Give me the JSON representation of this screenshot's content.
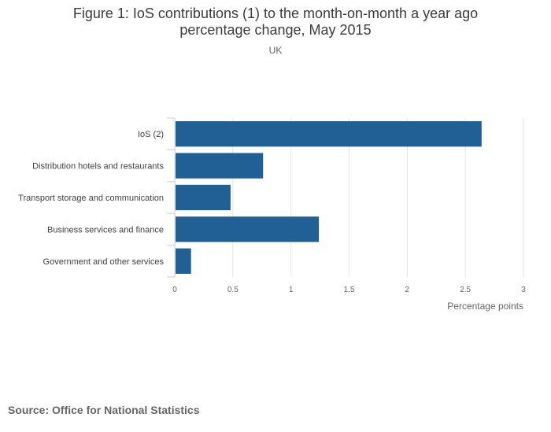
{
  "chart_data": {
    "type": "bar",
    "orientation": "horizontal",
    "title": "Figure 1: IoS contributions (1) to the month-on-month a year ago percentage change, May 2015",
    "subtitle": "UK",
    "categories": [
      "IoS (2)",
      "Distribution hotels and restaurants",
      "Transport storage and communication",
      "Business services and finance",
      "Government and other services"
    ],
    "values": [
      2.64,
      0.76,
      0.48,
      1.24,
      0.14
    ],
    "xlabel": "Percentage points",
    "ylabel": "",
    "xlim": [
      0,
      3
    ],
    "xticks": [
      0,
      0.5,
      1,
      1.5,
      2,
      2.5,
      3
    ],
    "xtick_labels": [
      "0",
      "0.5",
      "1",
      "1.5",
      "2",
      "2.5",
      "3"
    ],
    "grid": true,
    "bar_color": "#206095"
  },
  "footer": {
    "source": "Source: Office for National Statistics"
  }
}
